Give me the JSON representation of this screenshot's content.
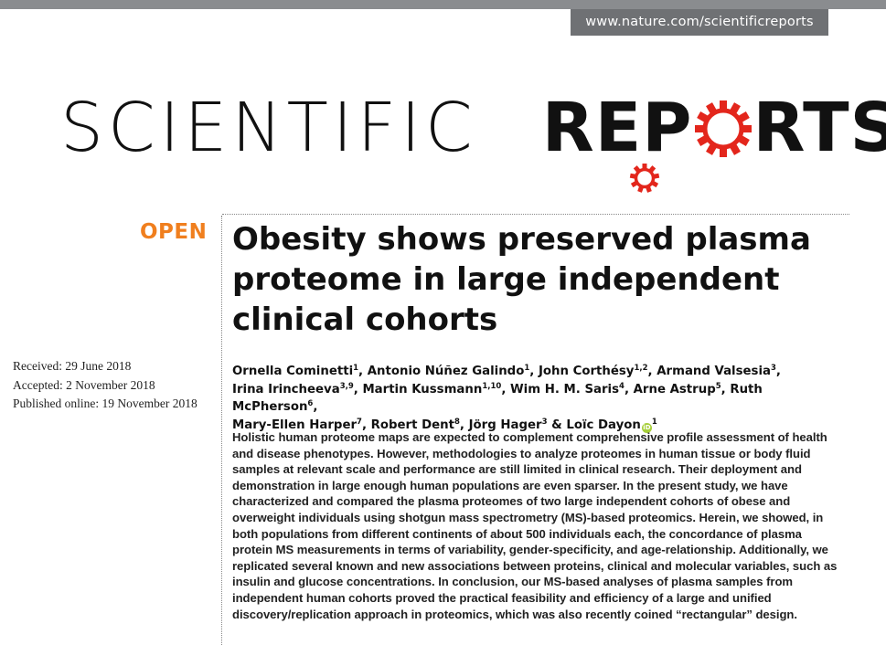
{
  "header": {
    "url": "www.nature.com/scientificreports"
  },
  "logo": {
    "light_text": "SCIENTIFIC",
    "bold_before": "REP",
    "bold_after": "RTS",
    "gear_color": "#e3261c",
    "text": "SCIENTIFIC REPORTS"
  },
  "badge": {
    "label": "OPEN",
    "color": "#f07f1e"
  },
  "article": {
    "title": "Obesity shows preserved plasma proteome in large independent clinical cohorts",
    "dates": [
      "Received: 29 June 2018",
      "Accepted: 2 November 2018",
      "Published online: 19 November 2018"
    ],
    "authors": [
      {
        "name": "Ornella Cominetti",
        "aff": "1"
      },
      {
        "name": "Antonio Núñez Galindo",
        "aff": "1"
      },
      {
        "name": "John Corthésy",
        "aff": "1,2"
      },
      {
        "name": "Armand Valsesia",
        "aff": "3"
      },
      {
        "name": "Irina Irincheeva",
        "aff": "3,9"
      },
      {
        "name": "Martin Kussmann",
        "aff": "1,10"
      },
      {
        "name": "Wim H. M. Saris",
        "aff": "4"
      },
      {
        "name": "Arne Astrup",
        "aff": "5"
      },
      {
        "name": "Ruth McPherson",
        "aff": "6"
      },
      {
        "name": "Mary-Ellen Harper",
        "aff": "7"
      },
      {
        "name": "Robert Dent",
        "aff": "8"
      },
      {
        "name": "Jörg Hager",
        "aff": "3"
      },
      {
        "name": "Loïc Dayon",
        "aff": "1"
      }
    ],
    "abstract": "Holistic human proteome maps are expected to complement comprehensive profile assessment of health and disease phenotypes. However, methodologies to analyze proteomes in human tissue or body fluid samples at relevant scale and performance are still limited in clinical research. Their deployment and demonstration in large enough human populations are even sparser. In the present study, we have characterized and compared the plasma proteomes of two large independent cohorts of obese and overweight individuals using shotgun mass spectrometry (MS)-based proteomics. Herein, we showed, in both populations from different continents of about 500 individuals each, the concordance of plasma protein MS measurements in terms of variability, gender-specificity, and age-relationship. Additionally, we replicated several known and new associations between proteins, clinical and molecular variables, such as insulin and glucose concentrations. In conclusion, our MS-based analyses of plasma samples from independent human cohorts proved the practical feasibility and efficiency of a large and unified discovery/replication approach in proteomics, which was also recently coined “rectangular” design."
  }
}
